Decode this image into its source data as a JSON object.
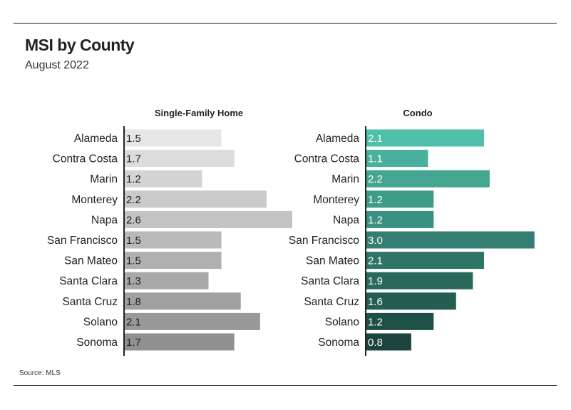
{
  "title": "MSI by County",
  "subtitle": "August 2022",
  "source": "Source: MLS",
  "chart_data": [
    {
      "type": "bar",
      "orientation": "horizontal",
      "title": "Single-Family Home",
      "categories": [
        "Alameda",
        "Contra Costa",
        "Marin",
        "Monterey",
        "Napa",
        "San Francisco",
        "San Mateo",
        "Santa Clara",
        "Santa Cruz",
        "Solano",
        "Sonoma"
      ],
      "values": [
        1.5,
        1.7,
        1.2,
        2.2,
        2.6,
        1.5,
        1.5,
        1.3,
        1.8,
        2.1,
        1.7
      ],
      "colors": [
        "#e6e6e6",
        "#dcdcdc",
        "#d3d3d3",
        "#cacaca",
        "#c3c3c3",
        "#b9b9b9",
        "#b0b0b0",
        "#a8a8a8",
        "#a0a0a0",
        "#989898",
        "#909090"
      ],
      "xlim": [
        0,
        2.6
      ],
      "grid": false,
      "data_labels": true
    },
    {
      "type": "bar",
      "orientation": "horizontal",
      "title": "Condo",
      "categories": [
        "Alameda",
        "Contra Costa",
        "Marin",
        "Monterey",
        "Napa",
        "San Francisco",
        "San Mateo",
        "Santa Clara",
        "Santa Cruz",
        "Solano",
        "Sonoma"
      ],
      "values": [
        2.1,
        1.1,
        2.2,
        1.2,
        1.2,
        3.0,
        2.1,
        1.9,
        1.6,
        1.2,
        0.8
      ],
      "colors": [
        "#4fbfa9",
        "#48b09c",
        "#44a590",
        "#3f9c88",
        "#3a9080",
        "#347f71",
        "#2e7567",
        "#29695c",
        "#245d52",
        "#1f5046",
        "#1a443c"
      ],
      "xlim": [
        0,
        3.0
      ],
      "grid": false,
      "data_labels": true
    }
  ]
}
